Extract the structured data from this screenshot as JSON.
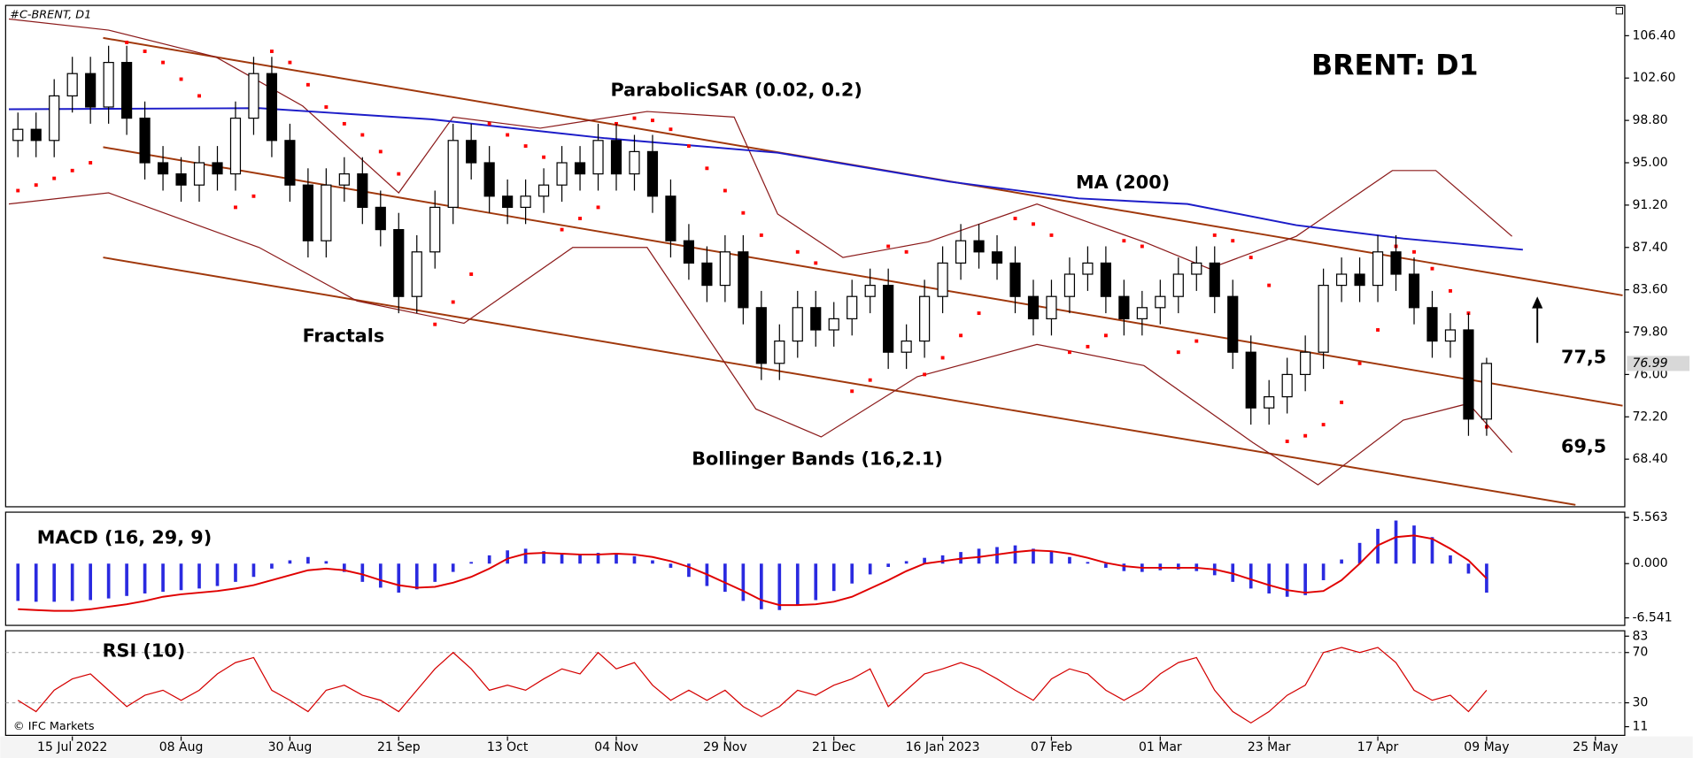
{
  "chart_data": [
    {
      "type": "candlestick",
      "title": "BRENT: D1",
      "symbol_label": "#C-BRENT, D1",
      "watermark": "© IFC Markets",
      "x": [
        0,
        1,
        2,
        3,
        4,
        5,
        6,
        7,
        8,
        9,
        10,
        11,
        12,
        13,
        14,
        15,
        16,
        17,
        18,
        19,
        20,
        21,
        22,
        23,
        24,
        25,
        26,
        27,
        28,
        29,
        30,
        31,
        32,
        33,
        34,
        35,
        36,
        37,
        38,
        39,
        40,
        41,
        42,
        43,
        44,
        45,
        46,
        47,
        48,
        49,
        50,
        51,
        52,
        53,
        54,
        55,
        56,
        57,
        58,
        59,
        60,
        61,
        62,
        63,
        64,
        65,
        66,
        67,
        68,
        69,
        70,
        71,
        72,
        73,
        74,
        75,
        76,
        77,
        78,
        79,
        80,
        81
      ],
      "open": [
        97,
        98,
        97,
        101,
        103,
        100,
        104,
        99,
        95,
        94,
        93,
        95,
        94,
        99,
        103,
        97,
        93,
        88,
        93,
        94,
        91,
        89,
        83,
        87,
        91,
        97,
        95,
        92,
        91,
        92,
        93,
        95,
        94,
        97,
        94,
        96,
        92,
        88,
        86,
        84,
        87,
        82,
        77,
        79,
        82,
        80,
        81,
        83,
        84,
        78,
        79,
        83,
        86,
        88,
        87,
        86,
        83,
        81,
        83,
        85,
        86,
        83,
        81,
        82,
        83,
        85,
        86,
        83,
        78,
        73,
        74,
        76,
        78,
        84,
        85,
        84,
        87,
        85,
        82,
        79,
        80,
        72
      ],
      "high": [
        99.5,
        99.5,
        102.5,
        104.5,
        104.5,
        105.5,
        105.5,
        100.5,
        96.5,
        95.5,
        96.5,
        96.5,
        100.5,
        104.5,
        104.5,
        98.5,
        94.5,
        94.5,
        95.5,
        95.5,
        92.5,
        90.5,
        88.5,
        92.5,
        98.5,
        98.5,
        96.5,
        93.5,
        93.5,
        94.5,
        96.5,
        96.5,
        98.5,
        98.5,
        97.5,
        97.5,
        93.5,
        89.5,
        87.5,
        88.5,
        88.5,
        83.5,
        80.5,
        83.5,
        83.5,
        82.5,
        84.5,
        85.5,
        85.5,
        80.5,
        84.5,
        87.5,
        89.5,
        89.5,
        88.5,
        87.5,
        84.5,
        84.5,
        86.5,
        87.5,
        87.5,
        84.5,
        83.5,
        84.5,
        86.5,
        87.5,
        87.5,
        84.5,
        79.5,
        75.5,
        77.5,
        79.5,
        85.5,
        86.5,
        86.5,
        88.5,
        88.5,
        86.5,
        83.5,
        81.5,
        81.5,
        77.5
      ],
      "low": [
        95.5,
        95.5,
        95.5,
        99.5,
        98.5,
        98.5,
        97.5,
        93.5,
        92.5,
        91.5,
        91.5,
        92.5,
        92.5,
        97.5,
        95.5,
        91.5,
        86.5,
        86.5,
        91.5,
        89.5,
        87.5,
        81.5,
        81.5,
        85.5,
        89.5,
        93.5,
        90.5,
        89.5,
        89.5,
        90.5,
        91.5,
        92.5,
        92.5,
        92.5,
        92.5,
        90.5,
        86.5,
        84.5,
        82.5,
        82.5,
        80.5,
        75.5,
        75.5,
        77.5,
        78.5,
        78.5,
        79.5,
        81.5,
        76.5,
        76.5,
        77.5,
        81.5,
        84.5,
        85.5,
        84.5,
        81.5,
        79.5,
        79.5,
        81.5,
        83.5,
        81.5,
        79.5,
        79.5,
        80.5,
        81.5,
        83.5,
        81.5,
        76.5,
        71.5,
        71.5,
        72.5,
        74.5,
        76.5,
        82.5,
        82.5,
        82.5,
        83.5,
        80.5,
        77.5,
        77.5,
        70.5,
        70.5
      ],
      "close": [
        98,
        97,
        101,
        103,
        100,
        104,
        99,
        95,
        94,
        93,
        95,
        94,
        99,
        103,
        97,
        93,
        88,
        93,
        94,
        91,
        89,
        83,
        87,
        91,
        97,
        95,
        92,
        91,
        92,
        93,
        95,
        94,
        97,
        94,
        96,
        92,
        88,
        86,
        84,
        87,
        82,
        77,
        79,
        82,
        80,
        81,
        83,
        84,
        78,
        79,
        83,
        86,
        88,
        87,
        86,
        83,
        81,
        83,
        85,
        86,
        83,
        81,
        82,
        83,
        85,
        86,
        83,
        78,
        73,
        74,
        76,
        78,
        84,
        85,
        84,
        87,
        85,
        82,
        79,
        80,
        72,
        76.99
      ],
      "up_color": "#ffffff",
      "down_color": "#000000",
      "wick_color": "#000000",
      "xlim": [
        -0.5,
        88.5
      ],
      "xticks": [
        {
          "value": 3,
          "label": "15 Jul 2022"
        },
        {
          "value": 9,
          "label": "08 Aug"
        },
        {
          "value": 15,
          "label": "30 Aug"
        },
        {
          "value": 21,
          "label": "21 Sep"
        },
        {
          "value": 27,
          "label": "13 Oct"
        },
        {
          "value": 33,
          "label": "04 Nov"
        },
        {
          "value": 39,
          "label": "29 Nov"
        },
        {
          "value": 45,
          "label": "21 Dec"
        },
        {
          "value": 51,
          "label": "16 Jan 2023"
        },
        {
          "value": 57,
          "label": "07 Feb"
        },
        {
          "value": 63,
          "label": "01 Mar"
        },
        {
          "value": 69,
          "label": "23 Mar"
        },
        {
          "value": 75,
          "label": "17 Apr"
        },
        {
          "value": 81,
          "label": "09 May"
        },
        {
          "value": 87,
          "label": "25 May"
        }
      ],
      "ylim": [
        64.13,
        109.12
      ],
      "yticks": [
        {
          "value": 106.4,
          "label": "106.40"
        },
        {
          "value": 102.6,
          "label": "102.60"
        },
        {
          "value": 98.8,
          "label": "98.80"
        },
        {
          "value": 95,
          "label": "95.00"
        },
        {
          "value": 91.2,
          "label": "91.20"
        },
        {
          "value": 87.4,
          "label": "87.40"
        },
        {
          "value": 83.6,
          "label": "83.60"
        },
        {
          "value": 79.8,
          "label": "79.80"
        },
        {
          "value": 76,
          "label": "76.00"
        },
        {
          "value": 72.2,
          "label": "72.20"
        },
        {
          "value": 68.4,
          "label": "68.40"
        }
      ],
      "ma": {
        "name": "MA (200)",
        "color": "#1c1cc8",
        "x": [
          -0.5,
          13.3,
          22.8,
          32.4,
          41.9,
          51.4,
          58.5,
          64.5,
          70.5,
          76.4,
          83
        ],
        "values": [
          99.8,
          99.9,
          98.9,
          97.2,
          95.9,
          93.3,
          91.8,
          91.3,
          89.4,
          88.2,
          87.2
        ]
      },
      "bollinger": {
        "name": "Bollinger Bands (16,2.1)",
        "color": "#8b1a1a",
        "upper": {
          "x": [
            -0.5,
            5,
            10.9,
            15.7,
            21,
            24,
            28.8,
            34.7,
            39.5,
            41.9,
            45.5,
            50.2,
            56.2,
            62.1,
            65.7,
            70.5,
            75.8,
            78.2,
            82.4
          ],
          "values": [
            107.9,
            106.9,
            104.5,
            100.1,
            92.3,
            99.1,
            98.1,
            99.6,
            99.1,
            90.4,
            86.5,
            87.9,
            91.3,
            87.9,
            85.5,
            88.4,
            94.3,
            94.3,
            88.4
          ]
        },
        "lower": {
          "x": [
            -0.5,
            5,
            13.3,
            18.7,
            24.6,
            30.6,
            34.7,
            40.7,
            44.3,
            49.6,
            56.2,
            62.1,
            68.1,
            71.7,
            76.4,
            80,
            82.4
          ],
          "values": [
            91.3,
            92.3,
            87.4,
            82.6,
            80.6,
            87.4,
            87.4,
            72.9,
            70.4,
            75.8,
            78.7,
            76.8,
            69.9,
            66.1,
            71.9,
            73.4,
            69
          ]
        }
      },
      "sar": {
        "name": "ParabolicSAR (0.02, 0.2)",
        "color": "#ff0000",
        "x": [
          0,
          1,
          2,
          3,
          4,
          6,
          7,
          8,
          9,
          10,
          12,
          13,
          14,
          15,
          16,
          17,
          18,
          19,
          20,
          21,
          23,
          24,
          25,
          26,
          27,
          28,
          29,
          30,
          31,
          32,
          33,
          34,
          35,
          36,
          37,
          38,
          39,
          40,
          41,
          43,
          44,
          46,
          47,
          48,
          49,
          50,
          51,
          52,
          53,
          55,
          56,
          57,
          58,
          59,
          60,
          61,
          62,
          64,
          65,
          66,
          67,
          68,
          69,
          70,
          71,
          72,
          73,
          74,
          75,
          76,
          77,
          78,
          79,
          80,
          81
        ],
        "values": [
          92.5,
          93,
          93.6,
          94.3,
          95,
          105.8,
          105,
          104,
          102.5,
          101,
          91,
          92,
          105,
          104,
          102,
          100,
          98.5,
          97.5,
          96,
          94,
          80.5,
          82.5,
          85,
          98.5,
          97.5,
          96.5,
          95.5,
          89,
          90,
          91,
          98.5,
          99,
          98.8,
          98,
          96.5,
          94.5,
          92.5,
          90.5,
          88.5,
          87,
          86,
          74.5,
          75.5,
          87.5,
          87,
          76,
          77.5,
          79.5,
          81.5,
          90,
          89.5,
          88.5,
          78,
          78.5,
          79.5,
          88,
          87.5,
          78,
          79,
          88.5,
          88,
          86.5,
          84,
          70,
          70.5,
          71.5,
          73.5,
          77,
          80,
          87.5,
          87,
          85.5,
          83.5,
          81.5,
          71.3
        ]
      },
      "fractals": {
        "name": "Fractals"
      },
      "channel": {
        "color": "#a0380c",
        "lines": [
          {
            "x": [
              4.7,
              88.5
            ],
            "values": [
              106.2,
              83.1
            ]
          },
          {
            "x": [
              4.7,
              88.5
            ],
            "values": [
              96.4,
              73.2
            ]
          },
          {
            "x": [
              4.7,
              85.9
            ],
            "values": [
              86.5,
              64.3
            ]
          }
        ]
      },
      "levels": [
        {
          "value": 77.5,
          "label": "77,5"
        },
        {
          "value": 69.5,
          "label": "69,5"
        }
      ]
    },
    {
      "type": "macd",
      "title": "MACD (16, 29, 9)",
      "histogram": {
        "color": "#2a2ae0",
        "values": [
          -4.5,
          -4.6,
          -4.6,
          -4.5,
          -4.4,
          -4.2,
          -3.9,
          -3.6,
          -3.4,
          -3.2,
          -3.0,
          -2.7,
          -2.2,
          -1.6,
          -0.6,
          0.4,
          0.8,
          0.3,
          -1.0,
          -2.2,
          -2.9,
          -3.5,
          -3.1,
          -2.2,
          -1.0,
          0.2,
          1.0,
          1.6,
          1.8,
          1.5,
          1.3,
          1.2,
          1.3,
          1.2,
          0.9,
          0.4,
          -0.5,
          -1.6,
          -2.7,
          -3.4,
          -4.5,
          -5.5,
          -5.6,
          -5.0,
          -4.4,
          -3.3,
          -2.4,
          -1.3,
          -0.4,
          0.3,
          0.7,
          1.0,
          1.4,
          1.8,
          2.0,
          2.2,
          1.8,
          1.5,
          0.8,
          0.2,
          -0.5,
          -0.9,
          -1.0,
          -0.8,
          -0.7,
          -0.9,
          -1.4,
          -2.2,
          -3.0,
          -3.6,
          -4.0,
          -3.8,
          -2.0,
          0.5,
          2.5,
          4.2,
          5.2,
          4.6,
          3.2,
          1.0,
          -1.2,
          -3.5
        ]
      },
      "signal": {
        "color": "#e00000",
        "values": [
          -5.5,
          -5.6,
          -5.7,
          -5.7,
          -5.5,
          -5.2,
          -4.9,
          -4.5,
          -4.0,
          -3.7,
          -3.5,
          -3.3,
          -3.0,
          -2.6,
          -2.0,
          -1.4,
          -0.8,
          -0.6,
          -0.8,
          -1.3,
          -2.0,
          -2.6,
          -2.9,
          -2.8,
          -2.3,
          -1.6,
          -0.6,
          0.6,
          1.2,
          1.3,
          1.2,
          1.1,
          1.1,
          1.2,
          1.1,
          0.8,
          0.3,
          -0.4,
          -1.3,
          -2.3,
          -3.3,
          -4.4,
          -5.0,
          -5.0,
          -4.9,
          -4.6,
          -4.0,
          -3.0,
          -2.0,
          -0.9,
          0.0,
          0.3,
          0.6,
          0.8,
          1.1,
          1.4,
          1.6,
          1.5,
          1.2,
          0.7,
          0.1,
          -0.3,
          -0.5,
          -0.5,
          -0.5,
          -0.5,
          -0.7,
          -1.2,
          -1.9,
          -2.6,
          -3.2,
          -3.5,
          -3.3,
          -2.0,
          0.0,
          2.2,
          3.2,
          3.4,
          3.0,
          1.8,
          0.4,
          -1.8
        ]
      },
      "ylim": [
        -7.45,
        6.21
      ],
      "yticks": [
        5.563,
        {
          "value": 0,
          "label": "0.000"
        },
        -6.541
      ]
    },
    {
      "type": "line",
      "title": "RSI (10)",
      "color": "#d40000",
      "values": [
        32,
        23,
        40,
        49,
        53,
        40,
        27,
        36,
        40,
        32,
        40,
        53,
        62,
        66,
        40,
        32,
        23,
        40,
        44,
        36,
        32,
        23,
        40,
        57,
        70,
        57,
        40,
        44,
        40,
        49,
        57,
        53,
        70,
        57,
        62,
        44,
        32,
        40,
        32,
        40,
        27,
        19,
        27,
        40,
        36,
        44,
        49,
        57,
        27,
        40,
        53,
        57,
        62,
        57,
        49,
        40,
        32,
        49,
        57,
        53,
        40,
        32,
        40,
        53,
        62,
        66,
        40,
        23,
        14,
        23,
        36,
        44,
        70,
        74,
        70,
        74,
        62,
        40,
        32,
        36,
        23,
        40
      ],
      "ylim": [
        4.1,
        87.3
      ],
      "yticks": [
        83,
        70,
        30,
        11
      ],
      "levels": [
        70,
        30
      ]
    }
  ]
}
